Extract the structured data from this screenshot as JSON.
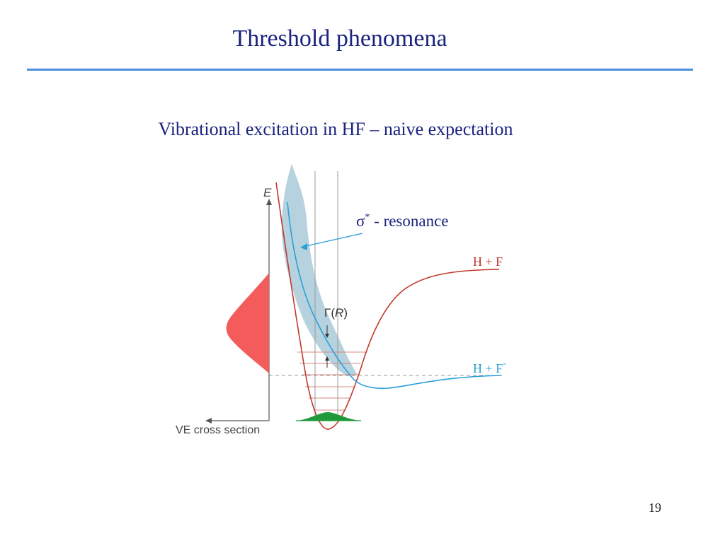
{
  "slide": {
    "title": "Threshold phenomena",
    "subtitle": "Vibrational excitation in HF – naive expectation",
    "page_number": "19"
  },
  "diagram": {
    "axis_label_energy": "E",
    "axis_label_ve": "VE cross section",
    "resonance_symbol": "σ",
    "resonance_superscript": "*",
    "resonance_label": " - resonance",
    "width_label_gamma": "Γ(",
    "width_label_r": "R",
    "width_label_close": ")",
    "neutral_asymptote": "H + F",
    "anion_asymptote": "H + F",
    "anion_charge": "-",
    "colors": {
      "neutral_curve": "#c0392b",
      "anion_curve": "#2a9fd8",
      "resonance_band": "#a9cad9",
      "cross_section_fill": "#f45b5b",
      "wavefunction_fill": "#1f9a3a",
      "vib_levels": "#d98880",
      "guide_lines": "#888888",
      "text": "#1a237e"
    }
  }
}
